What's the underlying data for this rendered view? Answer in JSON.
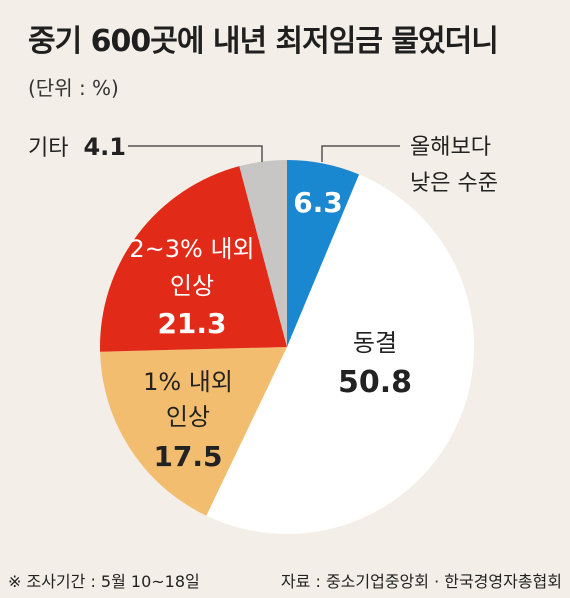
{
  "title": "중기 600곳에 내년 최저임금 물었더니",
  "unit": "(단위 : %)",
  "footer": {
    "note": "※ 조사기간 : 5월 10~18일",
    "source": "자료 : 중소기업중앙회 · 한국경영자총협회"
  },
  "chart_data": {
    "type": "pie",
    "title": "중기 600곳에 내년 최저임금 물었더니",
    "unit": "%",
    "slices": [
      {
        "label": "올해보다 낮은 수준",
        "value": 6.3,
        "value_label": "6.3",
        "color": "#1a87d1"
      },
      {
        "label": "동결",
        "value": 50.8,
        "value_label": "50.8",
        "color": "#ffffff"
      },
      {
        "label": "1% 내외 인상",
        "value": 17.5,
        "value_label": "17.5",
        "color": "#f3bd6f"
      },
      {
        "label": "2~3% 내외 인상",
        "value": 21.3,
        "value_label": "21.3",
        "color": "#e12a17"
      },
      {
        "label": "기타",
        "value": 4.1,
        "value_label": "4.1",
        "color": "#c8c6c4"
      }
    ],
    "label_lines": {
      "other": [
        "기타",
        "4.1"
      ],
      "lower": [
        "올해보다",
        "낮은 수준"
      ],
      "freeze": [
        "동결",
        "50.8"
      ],
      "one_pct": [
        "1% 내외",
        "인상",
        "17.5"
      ],
      "two_three_pct": [
        "2~3% 내외",
        "인상",
        "21.3"
      ],
      "lower_value": "6.3"
    }
  }
}
